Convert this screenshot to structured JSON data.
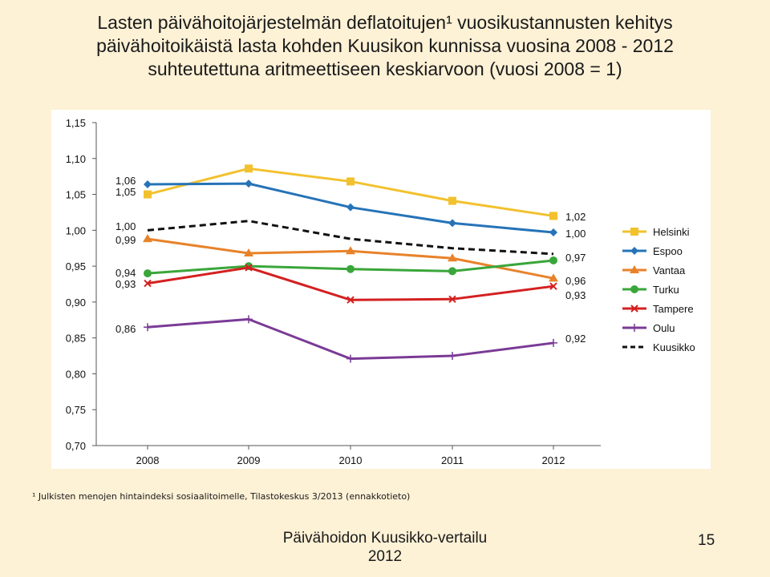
{
  "slide": {
    "title_lines": [
      "Lasten päivähoitojärjestelmän deflatoitujen¹ vuosikustannusten kehitys",
      "päivähoitoikäistä lasta kohden Kuusikon kunnissa vuosina 2008 - 2012",
      "suhteutettuna aritmeettiseen keskiarvoon (vuosi 2008 = 1)"
    ],
    "footnote": "¹ Julkisten menojen hintaindeksi sosiaalitoimelle, Tilastokeskus 3/2013 (ennakkotieto)",
    "footer_lines": [
      "Päivähoidon Kuusikko-vertailu",
      "2012"
    ],
    "page_number": "15"
  },
  "chart_data": {
    "type": "line",
    "categories": [
      "2008",
      "2009",
      "2010",
      "2011",
      "2012"
    ],
    "ylim": [
      0.7,
      1.15
    ],
    "yticks": [
      "0,70",
      "0,75",
      "0,80",
      "0,85",
      "0,90",
      "0,95",
      "1,00",
      "1,05",
      "1,10",
      "1,15"
    ],
    "grid": false,
    "legend_position": "right",
    "series": [
      {
        "name": "Helsinki",
        "color": "#f2c12e",
        "marker": "square",
        "dashed": false,
        "values": [
          1.05,
          1.086,
          1.068,
          1.041,
          1.02
        ]
      },
      {
        "name": "Espoo",
        "color": "#2673b8",
        "marker": "diamond",
        "dashed": false,
        "values": [
          1.064,
          1.065,
          1.032,
          1.01,
          0.997
        ]
      },
      {
        "name": "Vantaa",
        "color": "#e8822a",
        "marker": "triangle",
        "dashed": false,
        "values": [
          0.988,
          0.968,
          0.971,
          0.961,
          0.933
        ]
      },
      {
        "name": "Turku",
        "color": "#3aa63a",
        "marker": "circle",
        "dashed": false,
        "values": [
          0.94,
          0.95,
          0.946,
          0.943,
          0.958
        ]
      },
      {
        "name": "Tampere",
        "color": "#d42020",
        "marker": "x",
        "dashed": false,
        "values": [
          0.926,
          0.948,
          0.903,
          0.904,
          0.922
        ]
      },
      {
        "name": "Oulu",
        "color": "#7a3a96",
        "marker": "plus",
        "dashed": false,
        "values": [
          0.865,
          0.876,
          0.821,
          0.825,
          0.843
        ]
      },
      {
        "name": "Kuusikko",
        "color": "#111111",
        "marker": "none",
        "dashed": true,
        "values": [
          1.0,
          1.013,
          0.988,
          0.975,
          0.967
        ]
      }
    ],
    "labels_2008": [
      "1,06",
      "1,05",
      "1,00",
      "0,99",
      "0,94",
      "0,93",
      "0,86"
    ],
    "labels_2012": [
      "1,02",
      "1,00",
      "0,97",
      "0,96",
      "0,93",
      "0,92"
    ]
  }
}
